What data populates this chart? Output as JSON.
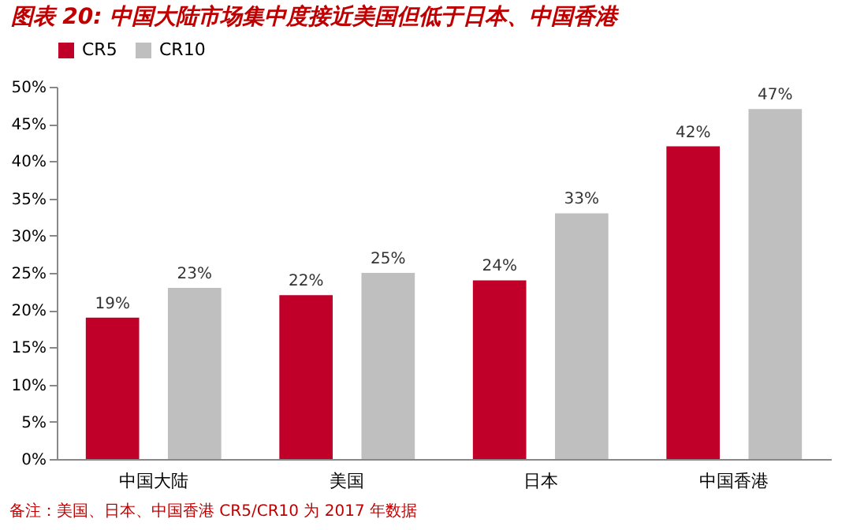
{
  "chart_data": {
    "type": "bar",
    "title": "图表 20:  中国大陆市场集中度接近美国但低于日本、中国香港",
    "categories": [
      "中国大陆",
      "美国",
      "日本",
      "中国香港"
    ],
    "series": [
      {
        "name": "CR5",
        "color": "#c00029",
        "values": [
          19,
          22,
          24,
          42
        ],
        "value_labels": [
          "19%",
          "22%",
          "24%",
          "42%"
        ]
      },
      {
        "name": "CR10",
        "color": "#bfbfbf",
        "values": [
          23,
          25,
          33,
          47
        ],
        "value_labels": [
          "23%",
          "25%",
          "33%",
          "47%"
        ]
      }
    ],
    "ylim": [
      0,
      50
    ],
    "yticks": [
      {
        "value": 0,
        "label": "0%"
      },
      {
        "value": 5,
        "label": "5%"
      },
      {
        "value": 10,
        "label": "10%"
      },
      {
        "value": 15,
        "label": "15%"
      },
      {
        "value": 20,
        "label": "20%"
      },
      {
        "value": 25,
        "label": "25%"
      },
      {
        "value": 30,
        "label": "30%"
      },
      {
        "value": 35,
        "label": "35%"
      },
      {
        "value": 40,
        "label": "40%"
      },
      {
        "value": 45,
        "label": "45%"
      },
      {
        "value": 50,
        "label": "50%"
      }
    ],
    "grid": false,
    "legend": "top",
    "annotations": [
      "备注：美国、日本、中国香港 CR5/CR10 为 2017 年数据"
    ]
  }
}
